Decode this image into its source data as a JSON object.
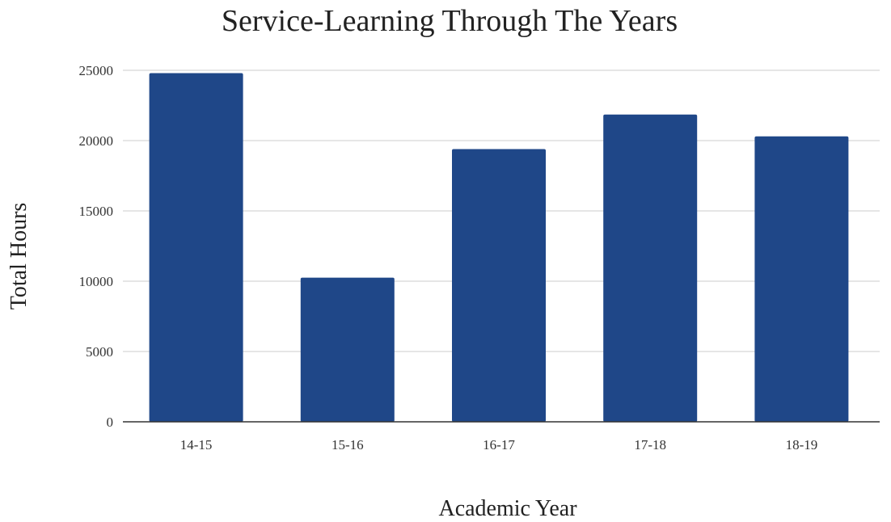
{
  "chart_data": {
    "type": "bar",
    "title": "Service-Learning Through The Years",
    "xlabel": "Academic Year",
    "ylabel": "Total Hours",
    "categories": [
      "14-15",
      "15-16",
      "16-17",
      "17-18",
      "18-19"
    ],
    "values": [
      24800,
      10250,
      19400,
      21850,
      20300
    ],
    "ylim": [
      0,
      25000
    ],
    "yticks": [
      0,
      5000,
      10000,
      15000,
      20000,
      25000
    ],
    "grid": true,
    "legend": "none",
    "bar_color": "#1f4788"
  }
}
